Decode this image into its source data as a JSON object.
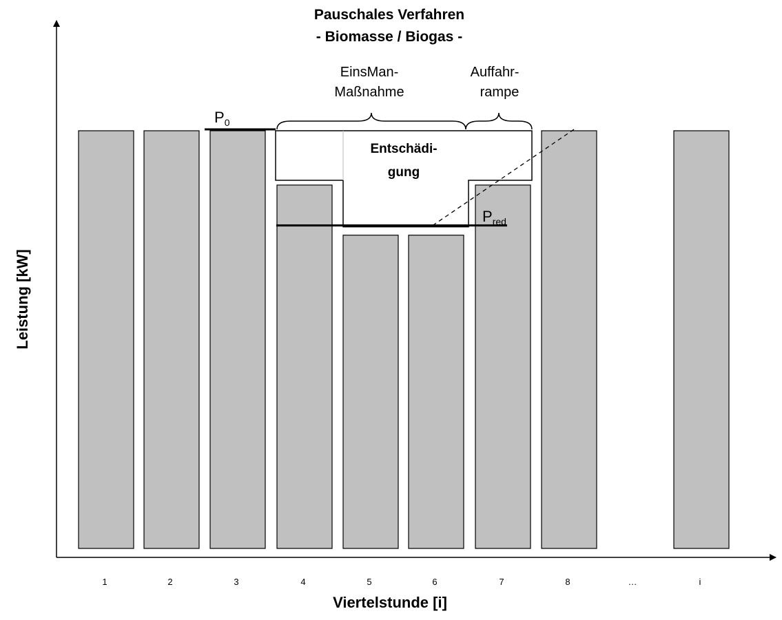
{
  "chart_data": {
    "type": "bar",
    "title_line1": "Pauschales Verfahren",
    "title_line2": "- Biomasse / Biogas -",
    "xlabel": "Viertelstunde [i]",
    "ylabel": "Leistung [kW]",
    "categories": [
      "1",
      "2",
      "3",
      "4",
      "5",
      "6",
      "7",
      "8",
      "…",
      "i"
    ],
    "values": [
      100,
      100,
      100,
      87,
      75,
      75,
      87,
      100,
      null,
      100
    ],
    "ylim": [
      0,
      106
    ],
    "P0_label": "P",
    "P0_sub": "0",
    "P0_value": 100,
    "Pred_label": "P",
    "Pred_sub": "red",
    "Pred_value": 77,
    "brace_einsman_line1": "EinsMan-",
    "brace_einsman_line2": "Maßnahme",
    "brace_auffahr_line1": "Auffahr-",
    "brace_auffahr_line2": "rampe",
    "compensation_line1": "Entschädi-",
    "compensation_line2": "gung",
    "colors": {
      "bar_fill": "#c0c0c0",
      "bar_stroke": "#000000",
      "background": "#ffffff"
    }
  }
}
